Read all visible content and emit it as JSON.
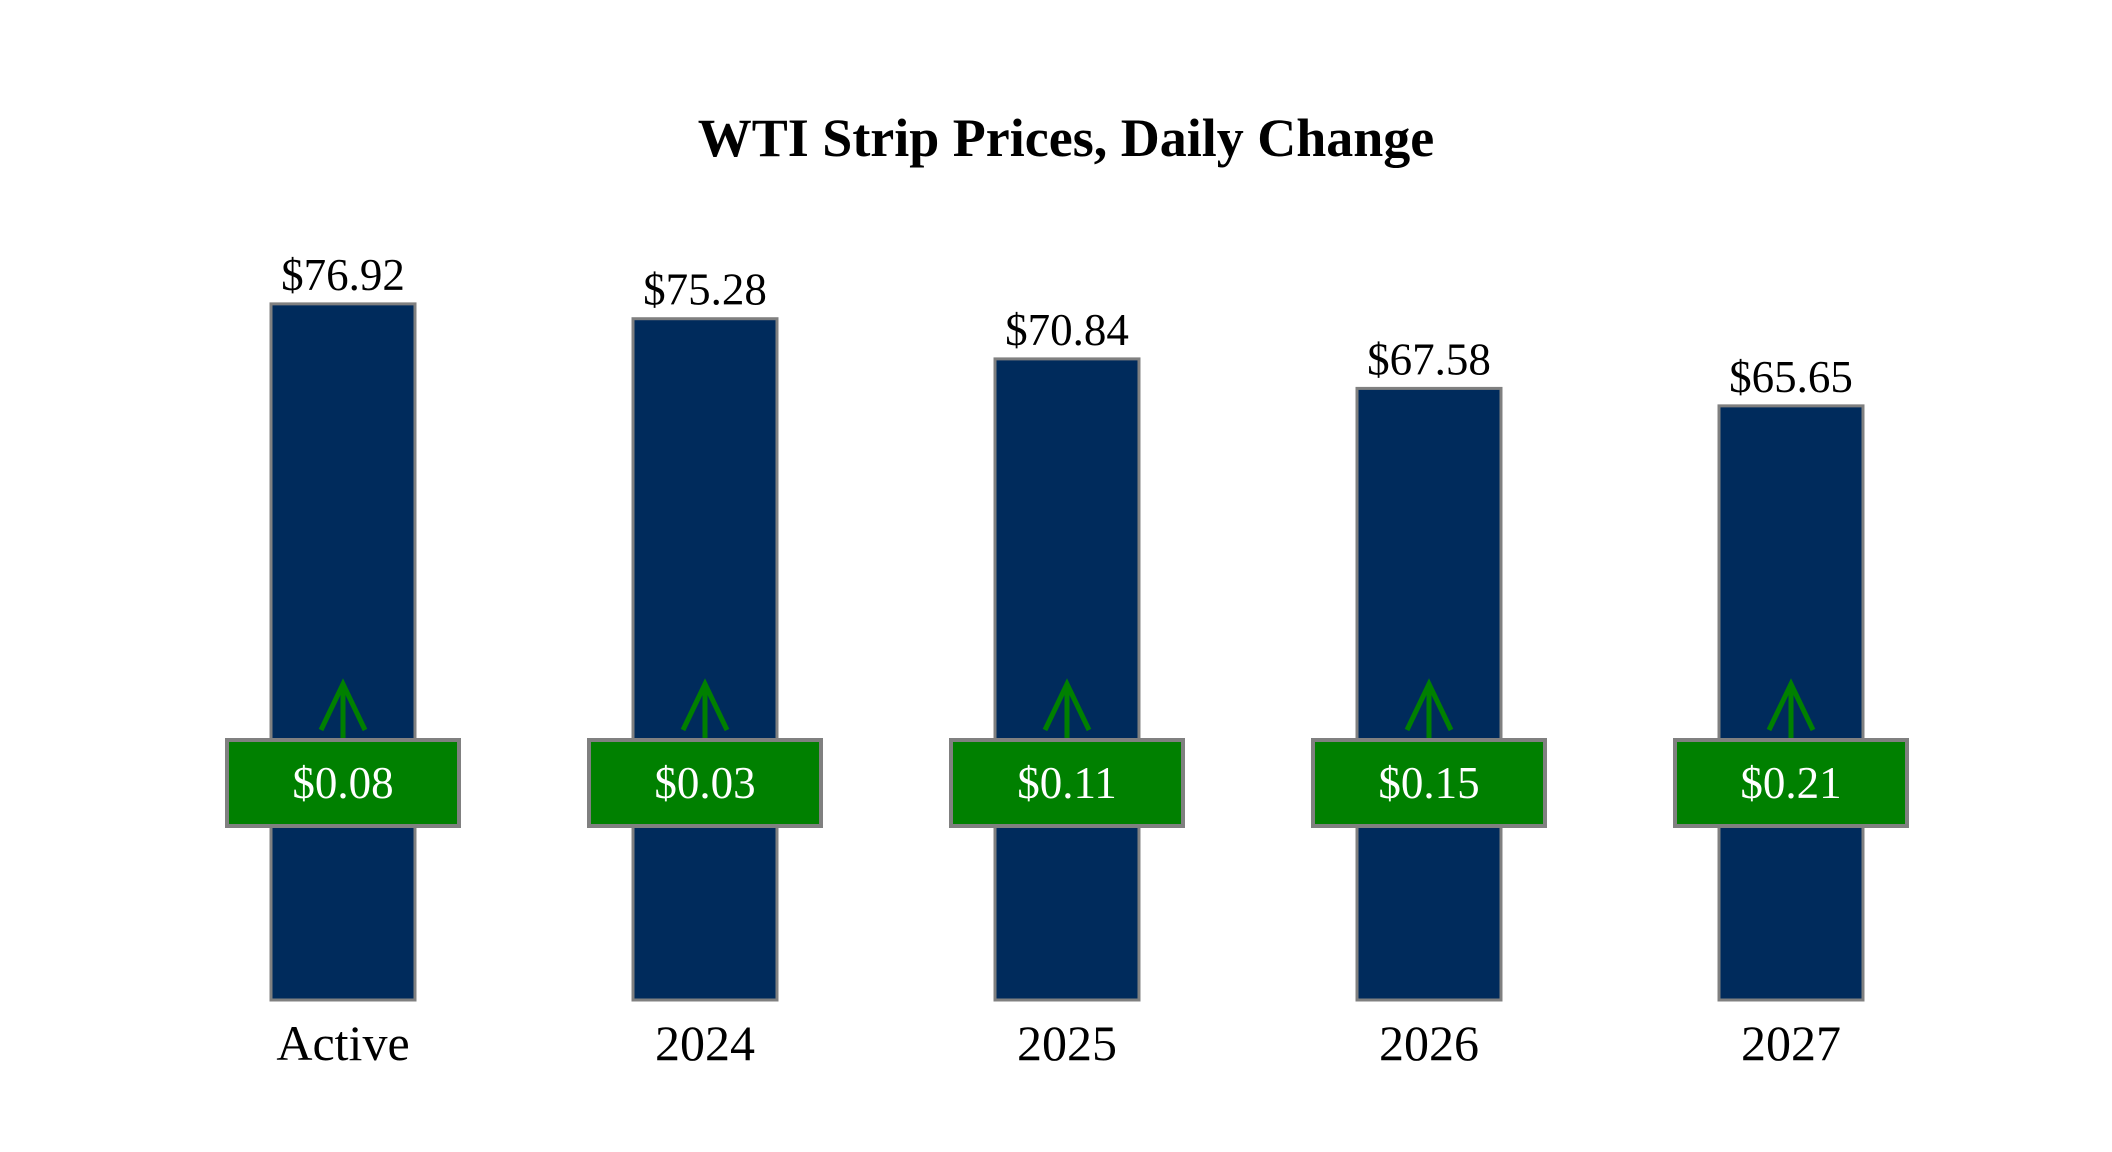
{
  "chart_data": {
    "type": "bar",
    "title": "WTI Strip Prices, Daily Change",
    "categories": [
      "Active",
      "2024",
      "2025",
      "2026",
      "2027"
    ],
    "values": [
      76.92,
      75.28,
      70.84,
      67.58,
      65.65
    ],
    "value_labels": [
      "$76.92",
      "$75.28",
      "$70.84",
      "$67.58",
      "$65.65"
    ],
    "color": "#002b5c",
    "ylim": [
      0,
      80
    ],
    "change": {
      "values": [
        0.08,
        0.03,
        0.11,
        0.15,
        0.21
      ],
      "value_labels": [
        "$0.08",
        "$0.03",
        "$0.11",
        "$0.15",
        "$0.21"
      ],
      "color": "#008000"
    }
  }
}
